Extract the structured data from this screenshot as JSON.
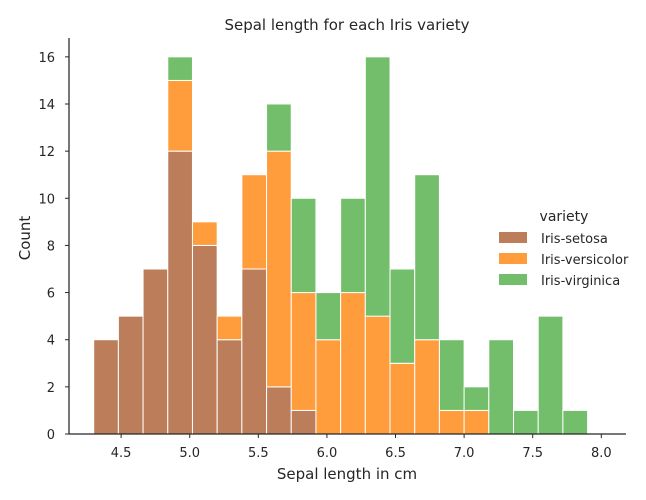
{
  "chart_data": {
    "type": "bar",
    "subtype": "stacked-histogram",
    "title": "Sepal length for each Iris variety",
    "xlabel": "Sepal length in cm",
    "ylabel": "Count",
    "xlim": [
      4.12,
      8.18
    ],
    "ylim": [
      0,
      16.8
    ],
    "xticks": [
      4.5,
      5.0,
      5.5,
      6.0,
      6.5,
      7.0,
      7.5,
      8.0
    ],
    "xtick_labels": [
      "4.5",
      "5.0",
      "5.5",
      "6.0",
      "6.5",
      "7.0",
      "7.5",
      "8.0"
    ],
    "yticks": [
      0,
      2,
      4,
      6,
      8,
      10,
      12,
      14,
      16
    ],
    "bin_edges": [
      4.3,
      4.48,
      4.66,
      4.84,
      5.02,
      5.2,
      5.38,
      5.56,
      5.74,
      5.92,
      6.1,
      6.28,
      6.46,
      6.64,
      6.82,
      7.0,
      7.18,
      7.36,
      7.54,
      7.72,
      7.9
    ],
    "legend_title": "variety",
    "legend_position": "center-right",
    "grid": false,
    "series": [
      {
        "name": "Iris-setosa",
        "color": "#bc7e5a",
        "values": [
          4,
          5,
          7,
          12,
          8,
          4,
          7,
          2,
          1,
          0,
          0,
          0,
          0,
          0,
          0,
          0,
          0,
          0,
          0,
          0
        ]
      },
      {
        "name": "Iris-versicolor",
        "color": "#ff9c3c",
        "values": [
          0,
          0,
          0,
          3,
          1,
          1,
          4,
          10,
          5,
          4,
          6,
          5,
          3,
          4,
          1,
          1,
          0,
          0,
          0,
          0
        ]
      },
      {
        "name": "Iris-virginica",
        "color": "#73be6a",
        "values": [
          0,
          0,
          0,
          1,
          0,
          0,
          0,
          2,
          4,
          2,
          4,
          11,
          4,
          7,
          3,
          1,
          4,
          1,
          5,
          1
        ]
      }
    ]
  }
}
